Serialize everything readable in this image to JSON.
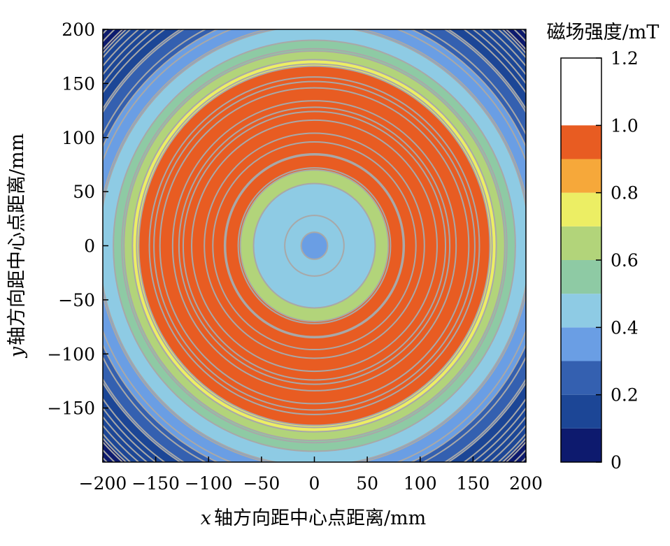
{
  "chart_data": {
    "type": "heatmap",
    "subtype": "filled-contour",
    "title": "",
    "xlabel": {
      "var": "x",
      "text": "轴方向距中心点距离/mm"
    },
    "ylabel": {
      "var": "y",
      "text": "轴方向距中心点距离/mm"
    },
    "xlim": [
      -200,
      200
    ],
    "ylim": [
      -200,
      200
    ],
    "xticks": [
      -200,
      -150,
      -100,
      -50,
      0,
      50,
      100,
      150,
      200
    ],
    "yticks": [
      -150,
      -100,
      -50,
      0,
      50,
      100,
      150,
      200
    ],
    "xtick_labels": [
      "−200",
      "−150",
      "−100",
      "−50",
      "0",
      "50",
      "100",
      "150",
      "200"
    ],
    "ytick_labels": [
      "−150",
      "−100",
      "−50",
      "0",
      "50",
      "100",
      "150",
      "200"
    ],
    "colorbar": {
      "title": "磁场强度/mT",
      "range": [
        0,
        1.2
      ],
      "ticks": [
        0,
        0.2,
        0.4,
        0.6,
        0.8,
        1.0,
        1.2
      ],
      "tick_labels": [
        "0",
        "0.2",
        "0.4",
        "0.6",
        "0.8",
        "1.0",
        "1.2"
      ],
      "levels": [
        0,
        0.1,
        0.2,
        0.3,
        0.4,
        0.5,
        0.6,
        0.7,
        0.8,
        0.9,
        1.0,
        1.1,
        1.2
      ],
      "colors": [
        "#0d1a6e",
        "#1c4696",
        "#3460b0",
        "#6a9ee4",
        "#8ecbe4",
        "#8ecaa4",
        "#b2d47a",
        "#ecee64",
        "#f6a83a",
        "#e85c22"
      ]
    },
    "field_profile": {
      "r": [
        0,
        25,
        45,
        60,
        65,
        75,
        90,
        100,
        110,
        120,
        140,
        150,
        160,
        175,
        195,
        215,
        240,
        285
      ],
      "b": [
        0.38,
        0.42,
        0.5,
        0.62,
        0.7,
        0.9,
        1.05,
        1.1,
        1.15,
        1.1,
        1.05,
        1.02,
        0.9,
        0.65,
        0.45,
        0.33,
        0.18,
        0.05
      ]
    },
    "contour_line_color": "#a8a8a8",
    "grid": false,
    "legend": "colorbar-right"
  }
}
